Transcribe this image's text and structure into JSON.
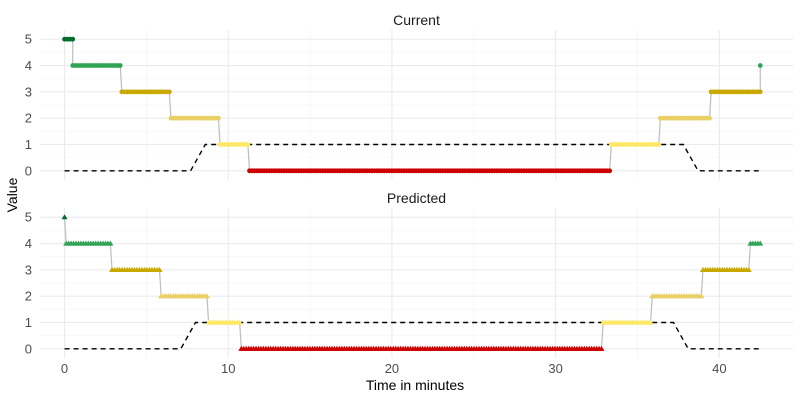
{
  "chart_data": {
    "type": "scatter",
    "xlabel": "Time in minutes",
    "ylabel": "Value",
    "xlim": [
      -1.5,
      44.5
    ],
    "ylim": [
      -0.35,
      5.35
    ],
    "x_ticks": [
      0,
      10,
      20,
      30,
      40
    ],
    "y_ticks": [
      0,
      1,
      2,
      3,
      4,
      5
    ],
    "grid": true,
    "legend": "none",
    "reference_color": "#000000",
    "connector_color": "#bdbdbd",
    "level_colors": {
      "5": "#006d2c",
      "4": "#31a354",
      "3": "#c9a800",
      "2": "#e8d066",
      "1": "#ffe866",
      "0": "#cc0000"
    },
    "panels": [
      {
        "title": "Current",
        "marker": "circle-icon",
        "segments": [
          {
            "level": 5,
            "x_start": 0.0,
            "x_end": 0.5
          },
          {
            "level": 4,
            "x_start": 0.5,
            "x_end": 3.4
          },
          {
            "level": 3,
            "x_start": 3.5,
            "x_end": 6.4
          },
          {
            "level": 2,
            "x_start": 6.5,
            "x_end": 9.4
          },
          {
            "level": 1,
            "x_start": 9.5,
            "x_end": 11.2
          },
          {
            "level": 0,
            "x_start": 11.3,
            "x_end": 33.3
          },
          {
            "level": 1,
            "x_start": 33.4,
            "x_end": 36.3
          },
          {
            "level": 2,
            "x_start": 36.4,
            "x_end": 39.4
          },
          {
            "level": 3,
            "x_start": 39.5,
            "x_end": 42.5
          },
          {
            "level": 4,
            "x_start": 42.5,
            "x_end": 42.5
          }
        ],
        "reference_line": [
          [
            0,
            0
          ],
          [
            7.7,
            0
          ],
          [
            8.6,
            1
          ],
          [
            37.8,
            1
          ],
          [
            38.7,
            0
          ],
          [
            42.5,
            0
          ]
        ]
      },
      {
        "title": "Predicted",
        "marker": "triangle-icon",
        "segments": [
          {
            "level": 5,
            "x_start": 0.0,
            "x_end": 0.0
          },
          {
            "level": 4,
            "x_start": 0.1,
            "x_end": 2.8
          },
          {
            "level": 3,
            "x_start": 2.9,
            "x_end": 5.8
          },
          {
            "level": 2,
            "x_start": 5.9,
            "x_end": 8.7
          },
          {
            "level": 1,
            "x_start": 8.8,
            "x_end": 10.7
          },
          {
            "level": 0,
            "x_start": 10.8,
            "x_end": 32.8
          },
          {
            "level": 1,
            "x_start": 32.9,
            "x_end": 35.8
          },
          {
            "level": 2,
            "x_start": 35.9,
            "x_end": 38.9
          },
          {
            "level": 3,
            "x_start": 39.0,
            "x_end": 41.8
          },
          {
            "level": 4,
            "x_start": 41.9,
            "x_end": 42.5
          }
        ],
        "reference_line": [
          [
            0,
            0
          ],
          [
            7.1,
            0
          ],
          [
            8.0,
            1
          ],
          [
            37.2,
            1
          ],
          [
            38.1,
            0
          ],
          [
            42.5,
            0
          ]
        ]
      }
    ]
  }
}
